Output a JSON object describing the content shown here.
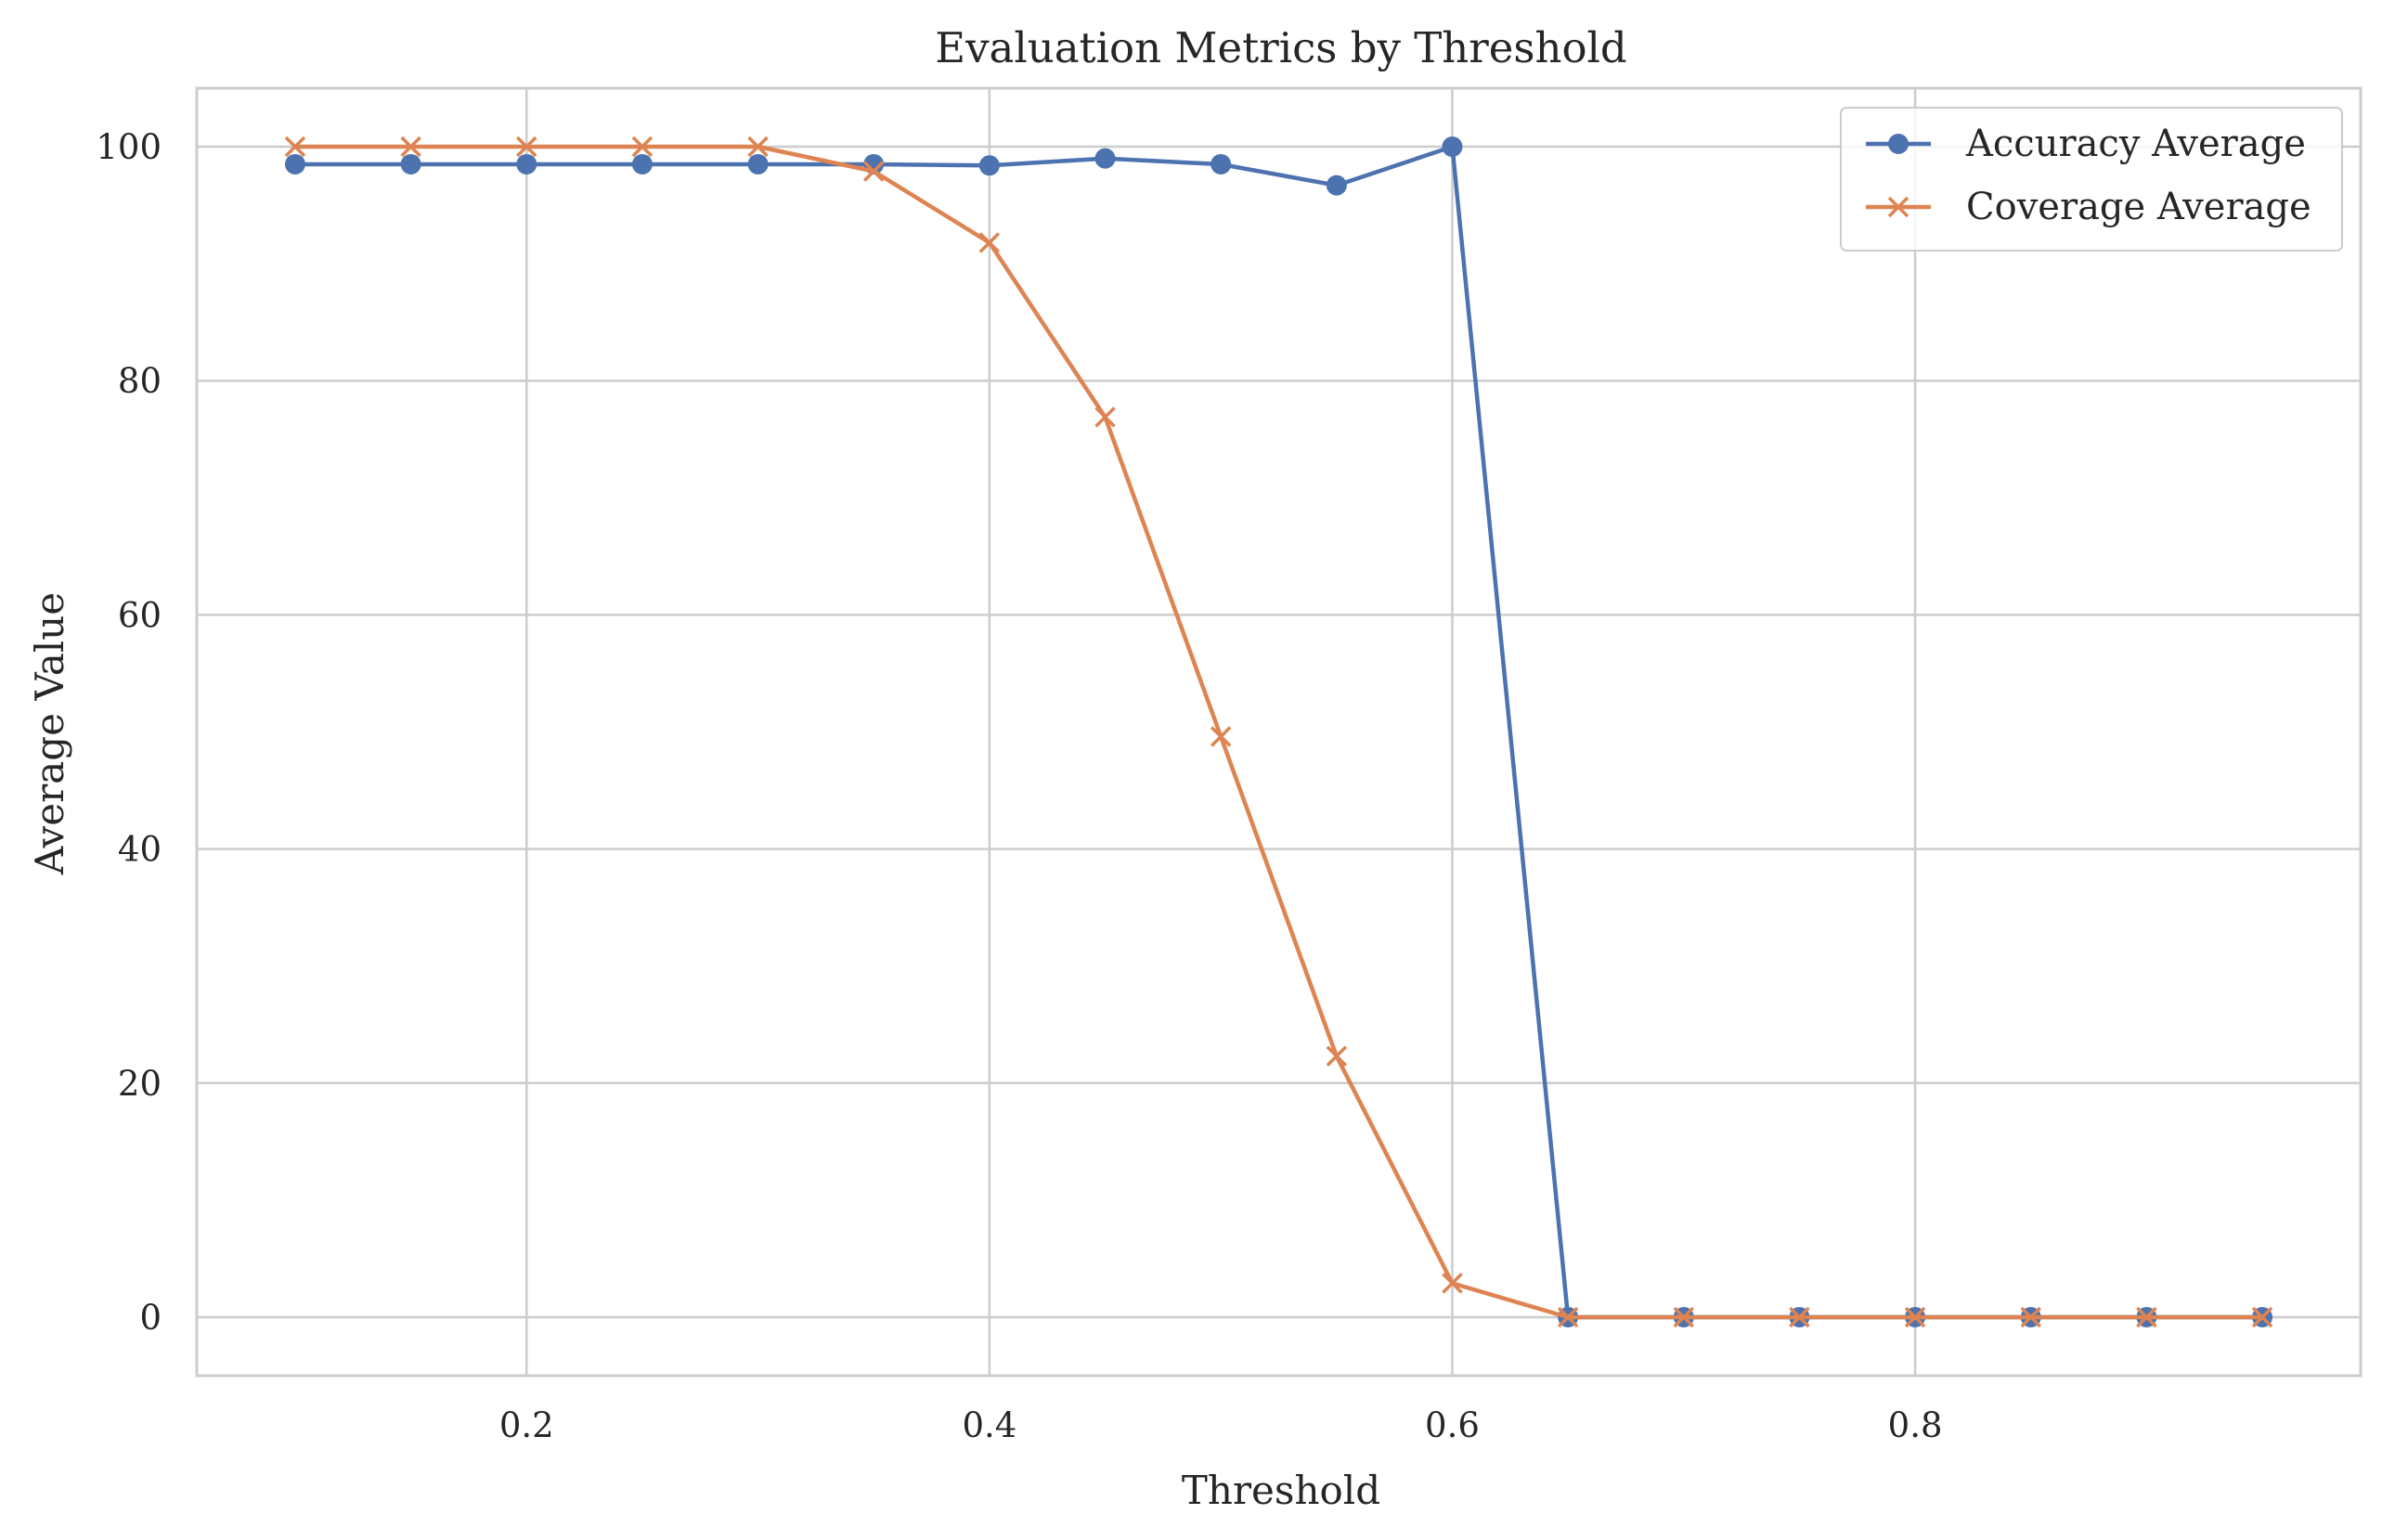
{
  "chart_data": {
    "type": "line",
    "title": "Evaluation Metrics by Threshold",
    "xlabel": "Threshold",
    "ylabel": "Average Value",
    "xlim": [
      0.0575,
      0.9925
    ],
    "ylim": [
      -5,
      105
    ],
    "xticks": [
      0.2,
      0.4,
      0.6,
      0.8
    ],
    "xtick_labels": [
      "0.2",
      "0.4",
      "0.6",
      "0.8"
    ],
    "yticks": [
      0,
      20,
      40,
      60,
      80,
      100
    ],
    "ytick_labels": [
      "0",
      "20",
      "40",
      "60",
      "80",
      "100"
    ],
    "grid": true,
    "legend_position": "top-right",
    "x": [
      0.1,
      0.15,
      0.2,
      0.25,
      0.3,
      0.35,
      0.4,
      0.45,
      0.5,
      0.55,
      0.6,
      0.65,
      0.7,
      0.75,
      0.8,
      0.85,
      0.9,
      0.95
    ],
    "series": [
      {
        "name": "Accuracy Average",
        "marker": "circle",
        "color": "#4c72b0",
        "values": [
          98.5,
          98.5,
          98.5,
          98.5,
          98.5,
          98.5,
          98.4,
          99.0,
          98.5,
          96.7,
          100,
          0,
          0,
          0,
          0,
          0,
          0,
          0
        ]
      },
      {
        "name": "Coverage Average",
        "marker": "x",
        "color": "#dd8452",
        "values": [
          100,
          100,
          100,
          100,
          100,
          97.9,
          91.8,
          76.9,
          49.6,
          22.3,
          2.9,
          0,
          0,
          0,
          0,
          0,
          0,
          0
        ]
      }
    ]
  },
  "colors": {
    "grid": "#cccccc",
    "spine": "#cccccc",
    "text": "#262626",
    "background": "#ffffff"
  }
}
